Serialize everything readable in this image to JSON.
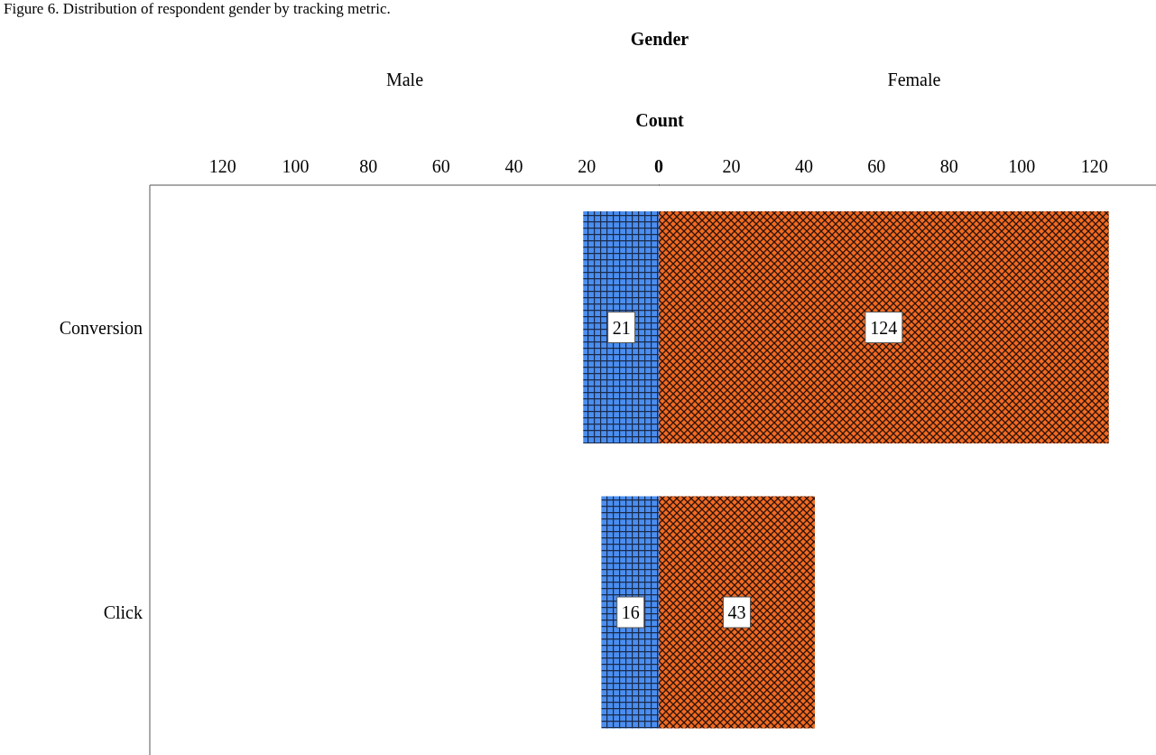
{
  "chart_data": [
    {
      "type": "bar",
      "orientation": "horizontal",
      "title": "Male",
      "xlabel": "Count",
      "annotations": [
        "Figure 6. Distribution of respondent gender by tracking metric.",
        "Gender"
      ],
      "categories": [
        "Conversion",
        "Click"
      ],
      "values": [
        21,
        16
      ],
      "color": "#4a8ef0",
      "xlim": [
        140,
        0
      ],
      "xticks": [
        120,
        100,
        80,
        60,
        40,
        20
      ],
      "data_labels": true
    },
    {
      "type": "bar",
      "orientation": "horizontal",
      "title": "Female",
      "categories": [
        null,
        null
      ],
      "values": [
        124,
        43
      ],
      "color": "#f26a22",
      "xlim": [
        0,
        137
      ],
      "xticks": [
        0,
        20,
        40,
        60,
        80,
        100,
        120
      ],
      "data_labels": true,
      "tick_labels": "x"
    }
  ]
}
